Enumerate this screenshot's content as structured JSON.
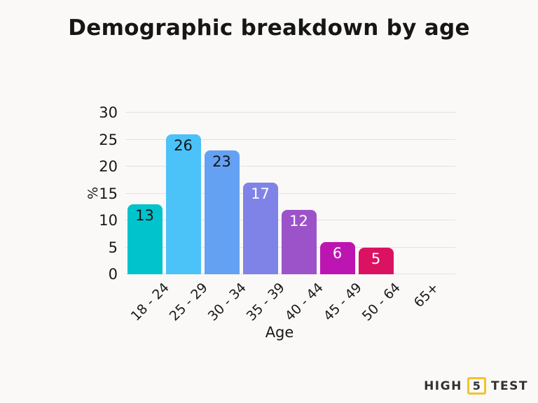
{
  "colors": {
    "background": "#FAF9F7",
    "gridline": "#E4E2DF",
    "text": "#161616"
  },
  "chart_data": {
    "type": "bar",
    "title": "Demographic breakdown by age",
    "xlabel": "Age",
    "ylabel": "%",
    "ylim": [
      0,
      30
    ],
    "y_ticks": [
      0,
      5,
      10,
      15,
      20,
      25,
      30
    ],
    "grid": true,
    "legend": false,
    "categories": [
      "18 - 24",
      "25 - 29",
      "30 - 34",
      "35 - 39",
      "40 - 44",
      "45 - 49",
      "50 - 64",
      "65+"
    ],
    "values": [
      13,
      26,
      23,
      17,
      12,
      6,
      5,
      0
    ],
    "bars": [
      {
        "category": "18 - 24",
        "value": 13,
        "color": "#00C3CC",
        "value_label_color": "#141414"
      },
      {
        "category": "25 - 29",
        "value": 26,
        "color": "#4BC2F8",
        "value_label_color": "#141414"
      },
      {
        "category": "30 - 34",
        "value": 23,
        "color": "#64A1F2",
        "value_label_color": "#141414"
      },
      {
        "category": "35 - 39",
        "value": 17,
        "color": "#7F83E7",
        "value_label_color": "#FFFFFF"
      },
      {
        "category": "40 - 44",
        "value": 12,
        "color": "#9C53CA",
        "value_label_color": "#FFFFFF"
      },
      {
        "category": "45 - 49",
        "value": 6,
        "color": "#BD15B1",
        "value_label_color": "#FFFFFF"
      },
      {
        "category": "50 - 64",
        "value": 5,
        "color": "#DB1261",
        "value_label_color": "#FFFFFF"
      },
      {
        "category": "65+",
        "value": 0,
        "color": null,
        "value_label_color": null
      }
    ]
  },
  "logo": {
    "word_left": "HIGH",
    "boxed_number": "5",
    "word_right": "TEST",
    "box_border_color": "#F2C230",
    "text_color": "#33312E"
  }
}
